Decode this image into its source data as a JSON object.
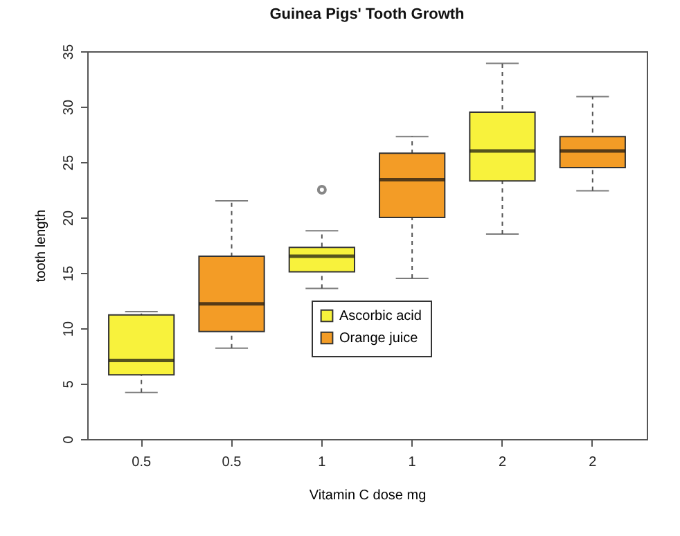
{
  "chart_data": {
    "type": "box",
    "title": "Guinea Pigs' Tooth Growth",
    "xlabel": "Vitamin C dose mg",
    "ylabel": "tooth length",
    "categories": [
      "0.5",
      "0.5",
      "1",
      "1",
      "2",
      "2"
    ],
    "ylim": [
      0,
      35
    ],
    "yticks": [
      0,
      5,
      10,
      15,
      20,
      25,
      30,
      35
    ],
    "legend": "bottom",
    "series": [
      {
        "name": "Ascorbic acid",
        "color": "#f8f23c",
        "boxes": [
          {
            "low": 4.2,
            "q1": 5.8,
            "median": 7.1,
            "q3": 11.2,
            "high": 11.5
          },
          null,
          {
            "low": 13.6,
            "q1": 15.1,
            "median": 16.5,
            "q3": 17.3,
            "high": 18.8,
            "outliers": [
              22.5
            ]
          },
          null,
          {
            "low": 18.5,
            "q1": 23.3,
            "median": 26,
            "q3": 29.5,
            "high": 33.9
          },
          null
        ]
      },
      {
        "name": "Orange juice",
        "color": "#f39c26",
        "boxes": [
          null,
          {
            "low": 8.2,
            "q1": 9.7,
            "median": 12.2,
            "q3": 16.5,
            "high": 21.5
          },
          null,
          {
            "low": 14.5,
            "q1": 20,
            "median": 23.4,
            "q3": 25.8,
            "high": 27.3
          },
          null,
          {
            "low": 22.4,
            "q1": 24.5,
            "median": 26,
            "q3": 27.3,
            "high": 30.9
          }
        ]
      }
    ]
  }
}
